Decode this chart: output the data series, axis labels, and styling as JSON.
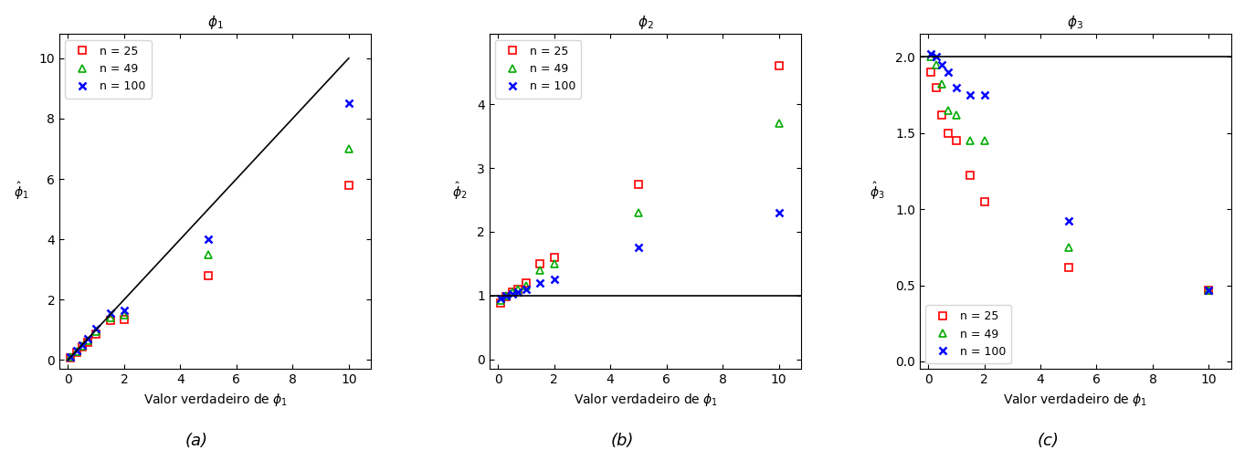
{
  "phi1_true": [
    0.1,
    0.3,
    0.5,
    0.7,
    1.0,
    1.5,
    2.0,
    5.0,
    10.0
  ],
  "phi1_n25": [
    0.08,
    0.25,
    0.43,
    0.6,
    0.85,
    1.3,
    1.35,
    2.8,
    5.8
  ],
  "phi1_n49": [
    0.09,
    0.28,
    0.47,
    0.65,
    0.95,
    1.4,
    1.5,
    3.5,
    7.0
  ],
  "phi1_n100": [
    0.1,
    0.3,
    0.5,
    0.7,
    1.05,
    1.55,
    1.65,
    4.0,
    8.5
  ],
  "phi2_n25": [
    0.88,
    0.98,
    1.05,
    1.1,
    1.2,
    1.5,
    1.6,
    2.75,
    4.6
  ],
  "phi2_n49": [
    0.92,
    1.0,
    1.05,
    1.1,
    1.15,
    1.4,
    1.5,
    2.3,
    3.7
  ],
  "phi2_n100": [
    0.95,
    1.0,
    1.02,
    1.05,
    1.1,
    1.2,
    1.25,
    1.75,
    2.3
  ],
  "phi3_x": [
    0.1,
    0.3,
    0.5,
    0.7,
    1.0,
    1.5,
    2.0,
    5.0,
    10.0
  ],
  "phi3_n25": [
    1.9,
    1.8,
    1.62,
    1.5,
    1.45,
    1.22,
    1.05,
    0.62,
    0.47
  ],
  "phi3_n49": [
    2.0,
    1.95,
    1.82,
    1.65,
    1.62,
    1.45,
    1.45,
    0.75,
    0.47
  ],
  "phi3_n100": [
    2.02,
    2.0,
    1.95,
    1.9,
    1.8,
    1.75,
    1.75,
    0.92,
    0.47
  ],
  "color_n25": "#ff0000",
  "color_n49": "#00aa00",
  "color_n100": "#0000ff",
  "title_a": "$\\phi_1$",
  "title_b": "$\\phi_2$",
  "title_c": "$\\phi_3$",
  "xlabel": "Valor verdadeiro de $\\phi_1$",
  "ylabel_a": "$\\hat{\\phi}_1$",
  "ylabel_b": "$\\hat{\\phi}_2$",
  "ylabel_c": "$\\hat{\\phi}_3$",
  "label_a": "(a)",
  "label_b": "(b)",
  "label_c": "(c)",
  "legend_n25": "n = 25",
  "legend_n49": "n = 49",
  "legend_n100": "n = 100",
  "bg_color": "#ffffff"
}
